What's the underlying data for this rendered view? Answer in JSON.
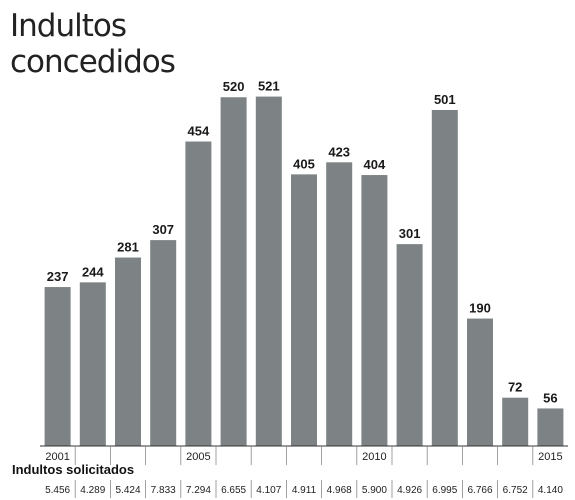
{
  "chart_data": {
    "type": "bar",
    "title": "Indultos concedidos",
    "categories": [
      "2001",
      "2002",
      "2003",
      "2004",
      "2005",
      "2006",
      "2007",
      "2008",
      "2009",
      "2010",
      "2011",
      "2012",
      "2013",
      "2014",
      "2015"
    ],
    "x_tick_labels": [
      "2001",
      "",
      "",
      "",
      "2005",
      "",
      "",
      "",
      "",
      "2010",
      "",
      "",
      "",
      "",
      "2015"
    ],
    "series": [
      {
        "values": [
          237,
          244,
          281,
          307,
          454,
          520,
          521,
          405,
          423,
          404,
          301,
          501,
          190,
          72,
          56
        ]
      }
    ],
    "ylim": [
      0,
      580
    ],
    "grid": false,
    "bar_color": "#7d8384",
    "secondary_row": {
      "label": "Indultos solicitados",
      "values": [
        "5.456",
        "4.289",
        "5.424",
        "7.833",
        "7.294",
        "6.655",
        "4.107",
        "4.911",
        "4.968",
        "5.900",
        "4.926",
        "6.995",
        "6.766",
        "6.752",
        "4.140"
      ]
    }
  }
}
